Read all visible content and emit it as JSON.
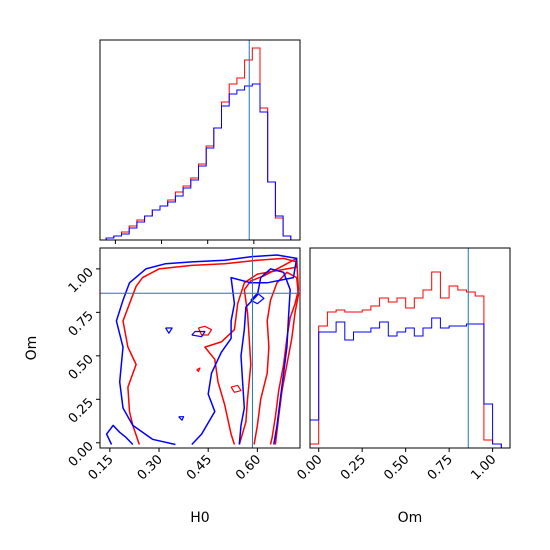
{
  "chart_data": {
    "type": "corner",
    "parameters": [
      "H0",
      "Om"
    ],
    "truths": {
      "H0": 0.585,
      "Om": 0.86
    },
    "series_colors": {
      "posterior-a": "#ff0000",
      "posterior-b": "#0000ff"
    },
    "truth_color": "#1f77b4",
    "panels": {
      "h0_histogram": {
        "type": "step-histogram",
        "xlim": [
          0.1,
          0.75
        ],
        "bin_edges": [
          0.12,
          0.145,
          0.17,
          0.195,
          0.22,
          0.245,
          0.27,
          0.295,
          0.32,
          0.345,
          0.37,
          0.395,
          0.42,
          0.445,
          0.47,
          0.495,
          0.52,
          0.545,
          0.57,
          0.595,
          0.62,
          0.645,
          0.67,
          0.695,
          0.72
        ],
        "series": [
          {
            "values": [
              0.01,
              0.02,
              0.04,
              0.07,
              0.1,
              0.12,
              0.15,
              0.17,
              0.2,
              0.24,
              0.27,
              0.31,
              0.38,
              0.47,
              0.56,
              0.69,
              0.78,
              0.81,
              0.9,
              0.96,
              0.66,
              0.29,
              0.11,
              0.02
            ]
          },
          {
            "values": [
              0.01,
              0.02,
              0.03,
              0.06,
              0.09,
              0.12,
              0.15,
              0.17,
              0.19,
              0.22,
              0.26,
              0.3,
              0.37,
              0.46,
              0.56,
              0.67,
              0.73,
              0.75,
              0.77,
              0.78,
              0.64,
              0.29,
              0.12,
              0.02
            ]
          }
        ]
      },
      "om_histogram": {
        "type": "step-histogram",
        "xlim": [
          -0.05,
          1.1
        ],
        "xticks": [
          "0.00",
          "0.25",
          "0.50",
          "0.75",
          "1.00"
        ],
        "bin_edges": [
          -0.05,
          0.0,
          0.05,
          0.1,
          0.15,
          0.2,
          0.25,
          0.3,
          0.35,
          0.4,
          0.45,
          0.5,
          0.55,
          0.6,
          0.65,
          0.7,
          0.75,
          0.8,
          0.85,
          0.9,
          0.95,
          1.0,
          1.05
        ],
        "series": [
          {
            "values": [
              0.02,
              0.61,
              0.68,
              0.69,
              0.68,
              0.68,
              0.69,
              0.71,
              0.75,
              0.73,
              0.75,
              0.7,
              0.75,
              0.79,
              0.88,
              0.75,
              0.81,
              0.79,
              0.78,
              0.76,
              0.04,
              0.02
            ]
          },
          {
            "values": [
              0.14,
              0.58,
              0.58,
              0.63,
              0.54,
              0.58,
              0.58,
              0.6,
              0.63,
              0.56,
              0.58,
              0.6,
              0.56,
              0.6,
              0.65,
              0.6,
              0.61,
              0.61,
              0.62,
              0.62,
              0.22,
              0.02
            ]
          }
        ]
      },
      "joint": {
        "type": "contour",
        "xlabel": "H0",
        "ylabel": "Om",
        "xlim": [
          0.12,
          0.73
        ],
        "ylim": [
          -0.03,
          1.12
        ],
        "xticks": [
          "0.15",
          "0.30",
          "0.45",
          "0.60"
        ],
        "yticks": [
          "0.00",
          "0.25",
          "0.50",
          "0.75",
          "1.00"
        ],
        "red_levels": [
          [
            [
              0.545,
              -0.01
            ],
            [
              0.565,
              0.12
            ],
            [
              0.57,
              0.25
            ],
            [
              0.58,
              0.45
            ],
            [
              0.575,
              0.6
            ],
            [
              0.57,
              0.75
            ],
            [
              0.56,
              0.88
            ],
            [
              0.58,
              0.93
            ],
            [
              0.62,
              0.96
            ],
            [
              0.66,
              1.0
            ],
            [
              0.69,
              1.03
            ],
            [
              0.72,
              1.06
            ],
            [
              0.725,
              0.88
            ],
            [
              0.715,
              0.8
            ],
            [
              0.7,
              0.72
            ],
            [
              0.69,
              0.6
            ],
            [
              0.68,
              0.45
            ],
            [
              0.665,
              0.3
            ],
            [
              0.655,
              0.15
            ],
            [
              0.645,
              0.03
            ],
            [
              0.64,
              -0.01
            ]
          ],
          [
            [
              0.59,
              -0.01
            ],
            [
              0.6,
              0.1
            ],
            [
              0.61,
              0.25
            ],
            [
              0.63,
              0.4
            ],
            [
              0.635,
              0.55
            ],
            [
              0.63,
              0.7
            ],
            [
              0.64,
              0.82
            ],
            [
              0.66,
              0.92
            ],
            [
              0.69,
              0.98
            ],
            [
              0.72,
              0.95
            ],
            [
              0.725,
              0.85
            ],
            [
              0.715,
              0.75
            ],
            [
              0.705,
              0.6
            ],
            [
              0.69,
              0.45
            ],
            [
              0.675,
              0.3
            ],
            [
              0.665,
              0.15
            ],
            [
              0.655,
              -0.01
            ]
          ],
          [
            [
              0.24,
              -0.01
            ],
            [
              0.22,
              0.1
            ],
            [
              0.21,
              0.18
            ],
            [
              0.205,
              0.32
            ],
            [
              0.23,
              0.45
            ],
            [
              0.205,
              0.55
            ],
            [
              0.19,
              0.7
            ],
            [
              0.21,
              0.8
            ],
            [
              0.23,
              0.9
            ],
            [
              0.25,
              0.95
            ],
            [
              0.3,
              1.0
            ],
            [
              0.4,
              1.02
            ],
            [
              0.5,
              1.03
            ],
            [
              0.6,
              1.05
            ],
            [
              0.68,
              1.06
            ],
            [
              0.72,
              1.04
            ],
            [
              0.72,
              1.01
            ],
            [
              0.66,
              0.99
            ],
            [
              0.6,
              0.97
            ],
            [
              0.56,
              0.92
            ],
            [
              0.54,
              0.8
            ],
            [
              0.53,
              0.65
            ],
            [
              0.49,
              0.58
            ],
            [
              0.44,
              0.55
            ],
            [
              0.47,
              0.48
            ],
            [
              0.48,
              0.35
            ],
            [
              0.5,
              0.22
            ],
            [
              0.52,
              0.05
            ],
            [
              0.53,
              -0.01
            ]
          ]
        ],
        "blue_levels": [
          [
            [
              0.35,
              -0.01
            ],
            [
              0.28,
              0.02
            ],
            [
              0.22,
              0.1
            ],
            [
              0.19,
              0.2
            ],
            [
              0.18,
              0.35
            ],
            [
              0.19,
              0.55
            ],
            [
              0.17,
              0.7
            ],
            [
              0.19,
              0.82
            ],
            [
              0.21,
              0.92
            ],
            [
              0.26,
              1.0
            ],
            [
              0.32,
              1.03
            ],
            [
              0.4,
              1.04
            ],
            [
              0.5,
              1.05
            ],
            [
              0.58,
              1.07
            ],
            [
              0.66,
              1.08
            ],
            [
              0.72,
              1.06
            ],
            [
              0.71,
              0.95
            ],
            [
              0.63,
              0.92
            ],
            [
              0.58,
              0.92
            ],
            [
              0.52,
              0.95
            ],
            [
              0.53,
              0.8
            ],
            [
              0.52,
              0.7
            ],
            [
              0.52,
              0.6
            ],
            [
              0.49,
              0.52
            ],
            [
              0.46,
              0.4
            ],
            [
              0.45,
              0.28
            ],
            [
              0.47,
              0.18
            ],
            [
              0.43,
              0.05
            ],
            [
              0.4,
              -0.01
            ]
          ],
          [
            [
              0.545,
              -0.01
            ],
            [
              0.55,
              0.1
            ],
            [
              0.56,
              0.2
            ],
            [
              0.555,
              0.35
            ],
            [
              0.55,
              0.5
            ],
            [
              0.56,
              0.65
            ],
            [
              0.565,
              0.78
            ],
            [
              0.6,
              0.85
            ],
            [
              0.61,
              0.95
            ],
            [
              0.64,
              1.0
            ],
            [
              0.68,
              0.98
            ],
            [
              0.7,
              0.88
            ],
            [
              0.695,
              0.72
            ],
            [
              0.69,
              0.55
            ],
            [
              0.68,
              0.4
            ],
            [
              0.67,
              0.25
            ],
            [
              0.66,
              0.1
            ],
            [
              0.65,
              -0.01
            ]
          ],
          [
            [
              0.155,
              -0.01
            ],
            [
              0.14,
              0.05
            ],
            [
              0.16,
              0.1
            ],
            [
              0.18,
              0.06
            ],
            [
              0.2,
              0.03
            ],
            [
              0.22,
              -0.01
            ]
          ]
        ],
        "red_islands": [
          [
            [
              0.42,
              0.66
            ],
            [
              0.43,
              0.62
            ],
            [
              0.45,
              0.62
            ],
            [
              0.46,
              0.65
            ],
            [
              0.44,
              0.67
            ],
            [
              0.42,
              0.66
            ]
          ],
          [
            [
              0.52,
              0.32
            ],
            [
              0.53,
              0.29
            ],
            [
              0.55,
              0.3
            ],
            [
              0.54,
              0.33
            ],
            [
              0.52,
              0.32
            ]
          ],
          [
            [
              0.415,
              0.42
            ],
            [
              0.42,
              0.41
            ],
            [
              0.425,
              0.43
            ],
            [
              0.415,
              0.42
            ]
          ]
        ],
        "blue_islands": [
          [
            [
              0.32,
              0.66
            ],
            [
              0.33,
              0.63
            ],
            [
              0.34,
              0.66
            ],
            [
              0.32,
              0.66
            ]
          ],
          [
            [
              0.4,
              0.62
            ],
            [
              0.43,
              0.61
            ],
            [
              0.44,
              0.64
            ],
            [
              0.41,
              0.64
            ],
            [
              0.4,
              0.62
            ]
          ],
          [
            [
              0.36,
              0.15
            ],
            [
              0.37,
              0.13
            ],
            [
              0.375,
              0.15
            ],
            [
              0.36,
              0.15
            ]
          ],
          [
            [
              0.58,
              0.82
            ],
            [
              0.6,
              0.8
            ],
            [
              0.62,
              0.83
            ],
            [
              0.6,
              0.86
            ],
            [
              0.58,
              0.82
            ]
          ]
        ]
      }
    }
  }
}
